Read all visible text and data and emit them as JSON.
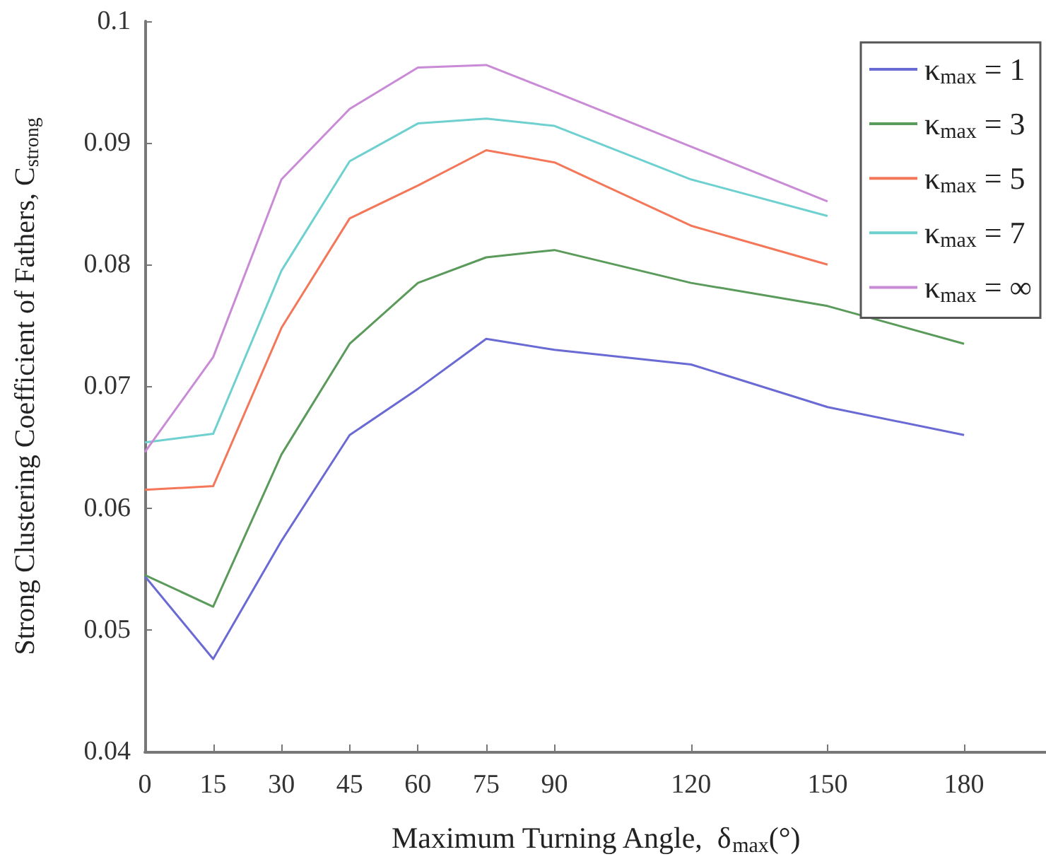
{
  "chart_data": {
    "type": "line",
    "xlabel": "Maximum Turning Angle,  δ$_{max}$(°)",
    "ylabel": "Strong Clustering Coefficient of Fathers, C$_{strong}$",
    "x": [
      0,
      15,
      30,
      45,
      60,
      75,
      90,
      120,
      150,
      180
    ],
    "xlim": [
      0,
      198
    ],
    "xticks": [
      0,
      15,
      30,
      45,
      60,
      75,
      90,
      120,
      150,
      180
    ],
    "series": [
      {
        "name": "κ$_{max}$ = 1",
        "color": "#6a6ad4",
        "values": [
          0.0544,
          0.0476,
          0.0573,
          0.066,
          0.0698,
          0.0739,
          0.073,
          0.0718,
          0.0683,
          0.066
        ]
      },
      {
        "name": "κ$_{max}$ = 3",
        "color": "#5a9a5a",
        "values": [
          0.0545,
          0.0519,
          0.0644,
          0.0735,
          0.0785,
          0.0806,
          0.0812,
          0.0785,
          0.0766,
          0.0735
        ]
      },
      {
        "name": "κ$_{max}$ = 5",
        "color": "#f4775a",
        "values": [
          0.0615,
          0.0618,
          0.0748,
          0.0838,
          0.0865,
          0.0894,
          0.0884,
          0.0832,
          0.08,
          null
        ]
      },
      {
        "name": "κ$_{max}$ = 7",
        "color": "#6fd0d0",
        "values": [
          0.0654,
          0.0661,
          0.0795,
          0.0885,
          0.0916,
          0.092,
          0.0914,
          0.087,
          0.084,
          null
        ]
      },
      {
        "name": "κ$_{max}$ = ∞",
        "color": "#c98ad6",
        "values": [
          0.0646,
          0.0724,
          0.087,
          0.0928,
          0.0962,
          0.0964,
          0.0942,
          0.0897,
          0.0852,
          null
        ]
      }
    ],
    "ylim": [
      0.04,
      0.1
    ],
    "yticks": [
      0.04,
      0.05,
      0.06,
      0.07,
      0.08,
      0.09,
      0.1
    ],
    "grid": false,
    "legend": "top right",
    "marker": "none",
    "line_style": "solid"
  }
}
